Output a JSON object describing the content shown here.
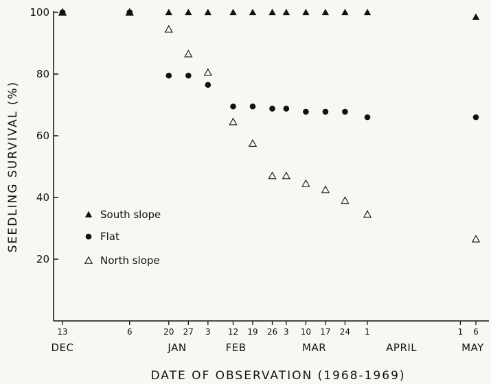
{
  "chart_data": {
    "type": "scatter",
    "xlabel": "DATE OF OBSERVATION (1968-1969)",
    "ylabel": "SEEDLING SURVIVAL (%)",
    "ylim": [
      0,
      100
    ],
    "yticks": [
      "20",
      "40",
      "60",
      "80",
      "100"
    ],
    "x_ticks": [
      {
        "label": "13",
        "date": "1968-12-13"
      },
      {
        "label": "6",
        "date": "1969-01-06"
      },
      {
        "label": "20",
        "date": "1969-01-20"
      },
      {
        "label": "27",
        "date": "1969-01-27"
      },
      {
        "label": "3",
        "date": "1969-02-03"
      },
      {
        "label": "12",
        "date": "1969-02-12"
      },
      {
        "label": "19",
        "date": "1969-02-19"
      },
      {
        "label": "26",
        "date": "1969-02-26"
      },
      {
        "label": "3",
        "date": "1969-03-03"
      },
      {
        "label": "10",
        "date": "1969-03-10"
      },
      {
        "label": "17",
        "date": "1969-03-17"
      },
      {
        "label": "24",
        "date": "1969-03-24"
      },
      {
        "label": "1",
        "date": "1969-04-01"
      },
      {
        "label": "1",
        "date": "1969-05-01"
      },
      {
        "label": "6",
        "date": "1969-05-06"
      }
    ],
    "months": [
      {
        "label": "DEC",
        "date": "1968-12-13"
      },
      {
        "label": "JAN",
        "date": "1969-01-23"
      },
      {
        "label": "FEB",
        "date": "1969-02-13"
      },
      {
        "label": "MAR",
        "date": "1969-03-13"
      },
      {
        "label": "APRIL",
        "date": "1969-04-12"
      },
      {
        "label": "MAY",
        "date": "1969-05-05"
      }
    ],
    "legend_position": "lower-left",
    "series": [
      {
        "name": "South slope",
        "marker": "filled-triangle",
        "points": [
          {
            "x": "1968-12-13",
            "y": 100
          },
          {
            "x": "1969-01-06",
            "y": 100
          },
          {
            "x": "1969-01-20",
            "y": 100
          },
          {
            "x": "1969-01-27",
            "y": 100
          },
          {
            "x": "1969-02-03",
            "y": 100
          },
          {
            "x": "1969-02-12",
            "y": 100
          },
          {
            "x": "1969-02-19",
            "y": 100
          },
          {
            "x": "1969-02-26",
            "y": 100
          },
          {
            "x": "1969-03-03",
            "y": 100
          },
          {
            "x": "1969-03-10",
            "y": 100
          },
          {
            "x": "1969-03-17",
            "y": 100
          },
          {
            "x": "1969-03-24",
            "y": 100
          },
          {
            "x": "1969-04-01",
            "y": 100
          },
          {
            "x": "1969-05-06",
            "y": 98.5
          }
        ]
      },
      {
        "name": "Flat",
        "marker": "filled-circle",
        "points": [
          {
            "x": "1968-12-13",
            "y": 100
          },
          {
            "x": "1969-01-06",
            "y": 100
          },
          {
            "x": "1969-01-20",
            "y": 79.5
          },
          {
            "x": "1969-01-27",
            "y": 79.5
          },
          {
            "x": "1969-02-03",
            "y": 76.5
          },
          {
            "x": "1969-02-12",
            "y": 69.5
          },
          {
            "x": "1969-02-19",
            "y": 69.5
          },
          {
            "x": "1969-02-26",
            "y": 68.8
          },
          {
            "x": "1969-03-03",
            "y": 68.8
          },
          {
            "x": "1969-03-10",
            "y": 67.8
          },
          {
            "x": "1969-03-17",
            "y": 67.8
          },
          {
            "x": "1969-03-24",
            "y": 67.8
          },
          {
            "x": "1969-04-01",
            "y": 66
          },
          {
            "x": "1969-05-06",
            "y": 66
          }
        ]
      },
      {
        "name": "North slope",
        "marker": "open-triangle",
        "points": [
          {
            "x": "1968-12-13",
            "y": 100
          },
          {
            "x": "1969-01-06",
            "y": 100
          },
          {
            "x": "1969-01-20",
            "y": 94.5
          },
          {
            "x": "1969-01-27",
            "y": 86.5
          },
          {
            "x": "1969-02-03",
            "y": 80.5
          },
          {
            "x": "1969-02-12",
            "y": 64.5
          },
          {
            "x": "1969-02-19",
            "y": 57.5
          },
          {
            "x": "1969-02-26",
            "y": 47
          },
          {
            "x": "1969-03-03",
            "y": 47
          },
          {
            "x": "1969-03-10",
            "y": 44.5
          },
          {
            "x": "1969-03-17",
            "y": 42.5
          },
          {
            "x": "1969-03-24",
            "y": 39
          },
          {
            "x": "1969-04-01",
            "y": 34.5
          },
          {
            "x": "1969-05-06",
            "y": 26.5
          }
        ]
      }
    ]
  }
}
